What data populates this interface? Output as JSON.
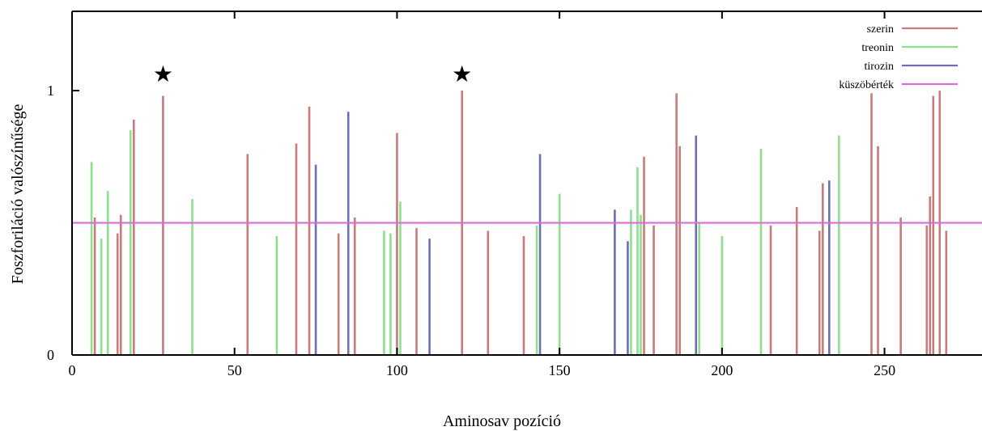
{
  "chart_data": {
    "type": "bar",
    "title": "",
    "xlabel": "Aminosav pozíció",
    "ylabel": "Foszforiláció valószínűsége",
    "xlim": [
      0,
      280
    ],
    "ylim": [
      0,
      1.3
    ],
    "x_ticks": [
      0,
      50,
      100,
      150,
      200,
      250
    ],
    "x_tick_labels": [
      "0",
      "50",
      "100",
      "150",
      "200",
      "250"
    ],
    "y_ticks": [
      0,
      1
    ],
    "y_tick_labels": [
      "0",
      "1"
    ],
    "grid": false,
    "legend_position": "top-right",
    "threshold": {
      "name": "küszöbérték",
      "value": 0.5,
      "color": "#d86ed8"
    },
    "series": [
      {
        "name": "szerin",
        "color": "#c97b7b",
        "points": [
          [
            7,
            0.52
          ],
          [
            14,
            0.46
          ],
          [
            15,
            0.53
          ],
          [
            19,
            0.89
          ],
          [
            28,
            0.98
          ],
          [
            54,
            0.76
          ],
          [
            69,
            0.8
          ],
          [
            73,
            0.94
          ],
          [
            82,
            0.46
          ],
          [
            87,
            0.52
          ],
          [
            100,
            0.84
          ],
          [
            106,
            0.48
          ],
          [
            120,
            1.0
          ],
          [
            128,
            0.47
          ],
          [
            139,
            0.45
          ],
          [
            176,
            0.75
          ],
          [
            179,
            0.49
          ],
          [
            186,
            0.99
          ],
          [
            187,
            0.79
          ],
          [
            215,
            0.49
          ],
          [
            223,
            0.56
          ],
          [
            230,
            0.47
          ],
          [
            231,
            0.65
          ],
          [
            246,
            0.99
          ],
          [
            248,
            0.79
          ],
          [
            255,
            0.52
          ],
          [
            263,
            0.49
          ],
          [
            264,
            0.6
          ],
          [
            265,
            0.98
          ],
          [
            267,
            1.0
          ],
          [
            269,
            0.47
          ]
        ]
      },
      {
        "name": "treonin",
        "color": "#8de08d",
        "points": [
          [
            6,
            0.73
          ],
          [
            9,
            0.44
          ],
          [
            11,
            0.62
          ],
          [
            18,
            0.85
          ],
          [
            37,
            0.59
          ],
          [
            63,
            0.45
          ],
          [
            96,
            0.47
          ],
          [
            98,
            0.46
          ],
          [
            101,
            0.58
          ],
          [
            143,
            0.49
          ],
          [
            150,
            0.61
          ],
          [
            172,
            0.55
          ],
          [
            174,
            0.71
          ],
          [
            175,
            0.53
          ],
          [
            193,
            0.5
          ],
          [
            200,
            0.45
          ],
          [
            212,
            0.78
          ],
          [
            236,
            0.83
          ]
        ]
      },
      {
        "name": "tirozin",
        "color": "#6e6eb5",
        "points": [
          [
            75,
            0.72
          ],
          [
            85,
            0.92
          ],
          [
            110,
            0.44
          ],
          [
            144,
            0.76
          ],
          [
            167,
            0.55
          ],
          [
            171,
            0.43
          ],
          [
            192,
            0.83
          ],
          [
            233,
            0.66
          ]
        ]
      }
    ],
    "annotations": [
      {
        "text": "★",
        "x": 28
      },
      {
        "text": "★",
        "x": 120
      }
    ]
  }
}
